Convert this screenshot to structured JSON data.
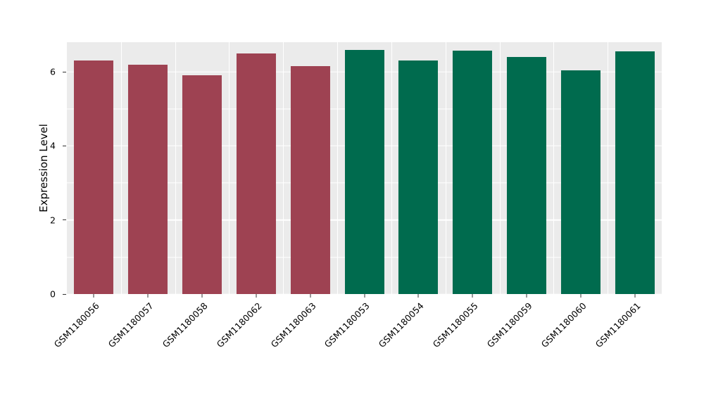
{
  "chart_data": {
    "type": "bar",
    "title": "",
    "xlabel": "",
    "ylabel": "Expression Level",
    "categories": [
      "GSM1180056",
      "GSM1180057",
      "GSM1180058",
      "GSM1180062",
      "GSM1180063",
      "GSM1180053",
      "GSM1180054",
      "GSM1180055",
      "GSM1180059",
      "GSM1180060",
      "GSM1180061"
    ],
    "values": [
      6.3,
      6.2,
      5.9,
      6.5,
      6.15,
      6.6,
      6.3,
      6.58,
      6.4,
      6.05,
      6.55
    ],
    "bar_colors": [
      "#9E4252",
      "#9E4252",
      "#9E4252",
      "#9E4252",
      "#9E4252",
      "#006B4E",
      "#006B4E",
      "#006B4E",
      "#006B4E",
      "#006B4E",
      "#006B4E"
    ],
    "group_colors": {
      "left_group": "#9E4252",
      "right_group": "#006B4E"
    },
    "ylim": [
      0,
      6.8
    ],
    "yticks": [
      0,
      2,
      4,
      6
    ],
    "yticks_minor": [
      1,
      3,
      5
    ],
    "grid": true,
    "legend_position": "none",
    "panel_background": "#EBEBEB",
    "figure_background": "#FFFFFF",
    "grid_color": "#FFFFFF",
    "bar_width_fraction": 0.73
  }
}
